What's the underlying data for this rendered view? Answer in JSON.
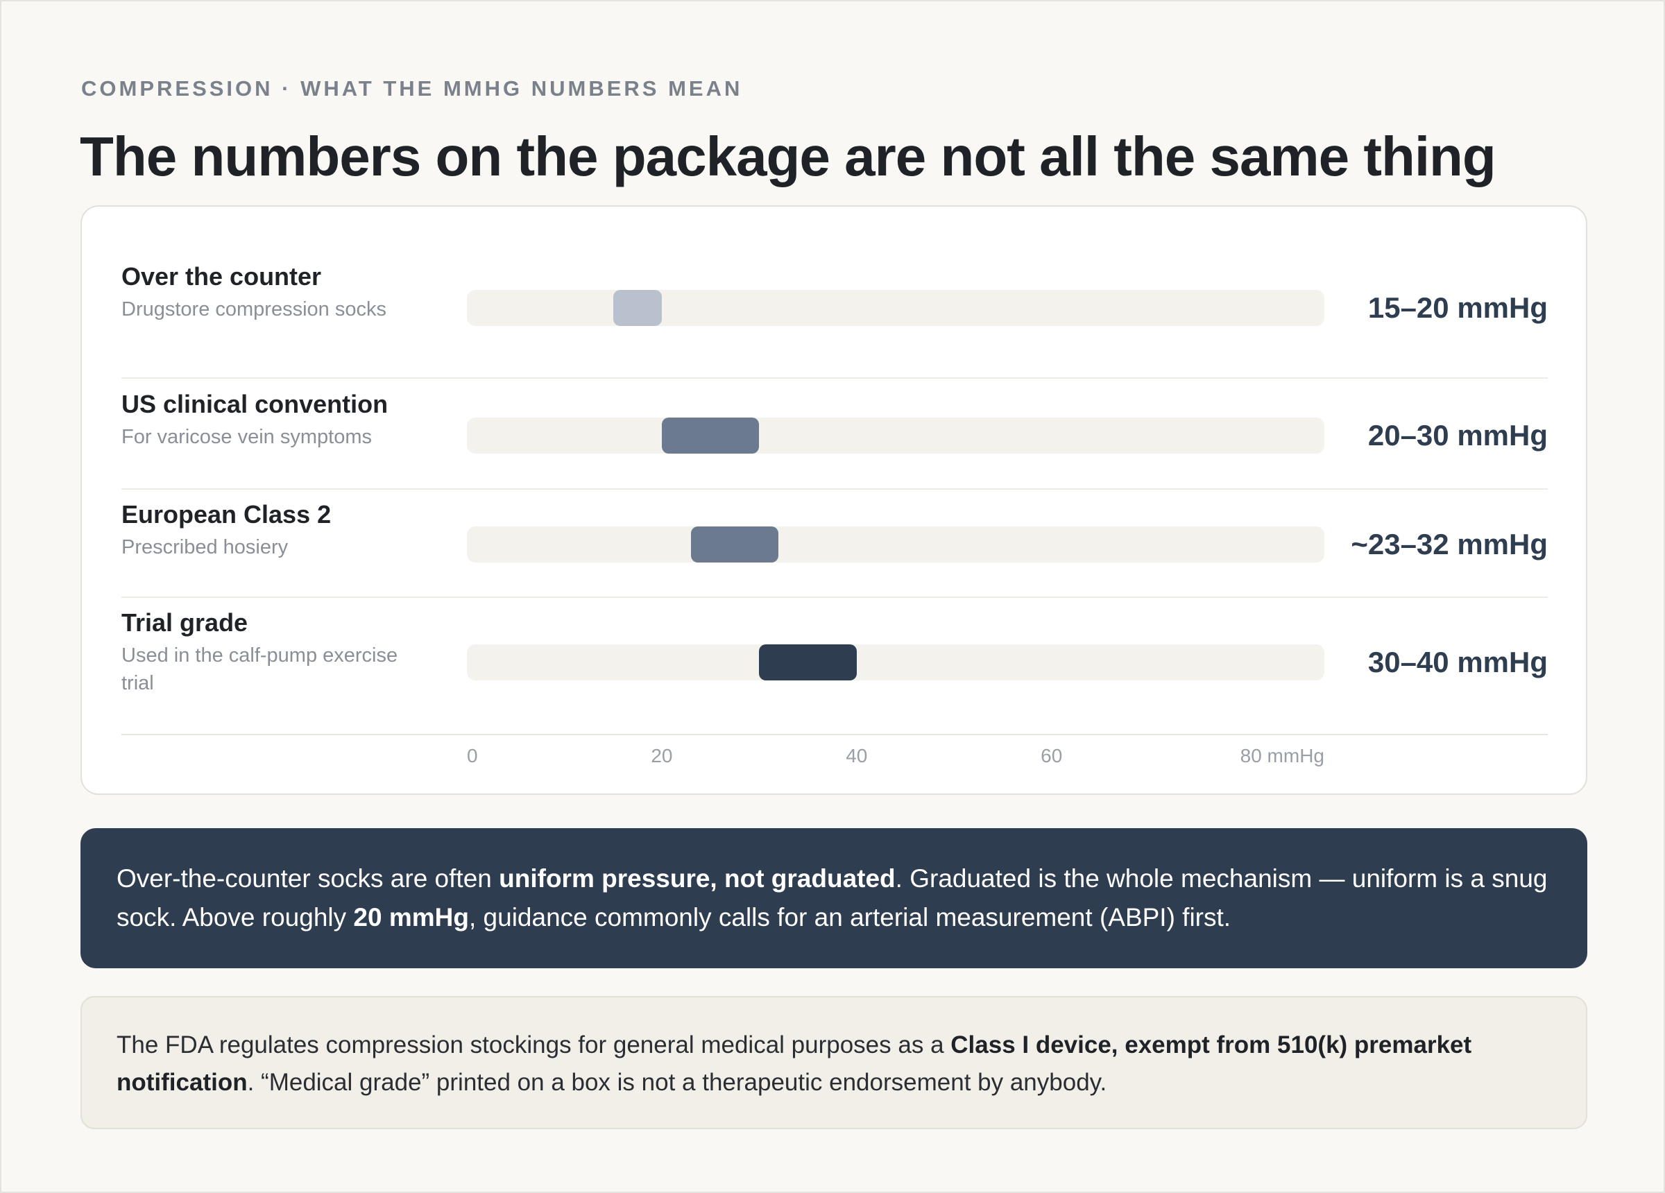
{
  "eyebrow": "COMPRESSION · WHAT THE MMHG NUMBERS MEAN",
  "title": "The numbers on the package are not all the same thing",
  "chart_data": {
    "type": "bar",
    "orientation": "horizontal-range",
    "xlim": [
      0,
      88
    ],
    "x_ticks": [
      "0",
      "20",
      "40",
      "60",
      "80 mmHg"
    ],
    "x_tick_values": [
      0,
      20,
      40,
      60,
      80
    ],
    "grid": false,
    "series": [
      {
        "name": "Over the counter",
        "description": "Drugstore compression socks",
        "low": 15,
        "high": 20,
        "label": "15–20 mmHg",
        "color": "#b8c1cd"
      },
      {
        "name": "US clinical convention",
        "description": "For varicose vein symptoms",
        "low": 20,
        "high": 30,
        "label": "20–30 mmHg",
        "color": "#6c7a8f"
      },
      {
        "name": "European Class 2",
        "description": "Prescribed hosiery",
        "low": 23,
        "high": 32,
        "label": "~23–32 mmHg",
        "color": "#6c7a8f"
      },
      {
        "name": "Trial grade",
        "description": "Used in the calf-pump exercise trial",
        "low": 30,
        "high": 40,
        "label": "30–40 mmHg",
        "color": "#2e3d50"
      }
    ]
  },
  "callout": {
    "t1": "Over-the-counter socks are often ",
    "b1": "uniform pressure, not graduated",
    "t2": ". Graduated is the whole mechanism — uniform is a snug sock. Above roughly ",
    "b2": "20 mmHg",
    "t3": ", guidance commonly calls for an arterial measurement (ABPI) first."
  },
  "note": {
    "t1": "The FDA regulates compression stockings for general medical purposes as a ",
    "b1": "Class I device, exempt from 510(k) premarket notification",
    "t2": ". “Medical grade” printed on a box is not a therapeutic endorsement by anybody."
  }
}
